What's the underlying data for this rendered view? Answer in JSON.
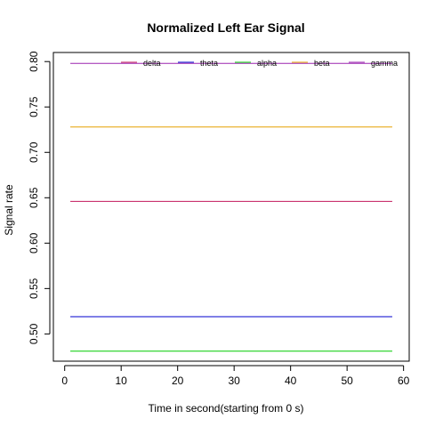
{
  "chart_data": {
    "type": "line",
    "title": "Normalized Left Ear Signal",
    "xlabel": "Time in second(starting from 0 s)",
    "ylabel": "Signal rate",
    "xlim": [
      -2,
      61
    ],
    "ylim": [
      0.47,
      0.81
    ],
    "xticks": [
      0,
      10,
      20,
      30,
      40,
      50,
      60
    ],
    "yticks": [
      0.5,
      0.55,
      0.6,
      0.65,
      0.7,
      0.75,
      0.8
    ],
    "ytick_labels": [
      "0.50",
      "0.55",
      "0.60",
      "0.65",
      "0.70",
      "0.75",
      "0.80"
    ],
    "x": [
      1,
      58
    ],
    "series": [
      {
        "name": "delta",
        "color": "#c2185b",
        "values": [
          0.646,
          0.646
        ]
      },
      {
        "name": "theta",
        "color": "#0000cc",
        "values": [
          0.519,
          0.519
        ]
      },
      {
        "name": "alpha",
        "color": "#00cc00",
        "values": [
          0.481,
          0.481
        ]
      },
      {
        "name": "beta",
        "color": "#e6a000",
        "values": [
          0.728,
          0.728
        ]
      },
      {
        "name": "gamma",
        "color": "#9c27b0",
        "values": [
          0.798,
          0.798
        ]
      }
    ],
    "legend_position": "top-right",
    "grid": false
  }
}
